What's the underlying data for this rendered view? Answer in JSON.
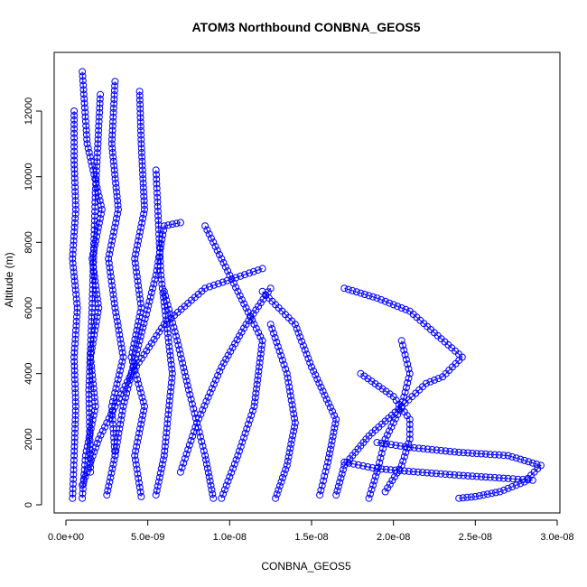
{
  "colors": {
    "series": "#0000ff",
    "axis": "#000000"
  },
  "chart_data": {
    "type": "scatter",
    "title": "ATOM3 Northbound CONBNA_GEOS5",
    "xlabel": "CONBNA_GEOS5",
    "ylabel": "Altitude (m)",
    "xlim": [
      -1e-09,
      3e-08
    ],
    "ylim": [
      -500,
      13300
    ],
    "xticks": [
      0,
      5e-09,
      1e-08,
      1.5e-08,
      2e-08,
      2.5e-08,
      3e-08
    ],
    "xtick_labels": [
      "0.0e+00",
      "5.0e-09",
      "1.0e-08",
      "1.5e-08",
      "2.0e-08",
      "2.5e-08",
      "3.0e-08"
    ],
    "yticks": [
      0,
      2000,
      4000,
      6000,
      8000,
      10000,
      12000
    ],
    "ytick_labels": [
      "0",
      "2000",
      "4000",
      "6000",
      "8000",
      "10000",
      "12000"
    ],
    "marker": "open-circle-with-connecting-line",
    "grid": false,
    "legend": "none",
    "series": [
      {
        "x": [
          4e-10,
          5e-10,
          6e-10,
          5e-10,
          7e-10,
          4e-10,
          6e-10,
          5e-10,
          5e-10
        ],
        "y": [
          200,
          1500,
          3000,
          4500,
          6000,
          7500,
          9000,
          10500,
          12000
        ]
      },
      {
        "x": [
          1e-09,
          1.2e-09,
          1.8e-09,
          1.5e-09,
          2e-09,
          1.6e-09,
          2.2e-09,
          1.3e-09,
          1e-09
        ],
        "y": [
          200,
          1500,
          3000,
          4500,
          6000,
          7500,
          9000,
          11000,
          13200
        ]
      },
      {
        "x": [
          2.5e-09,
          3e-09,
          2.8e-09,
          3.5e-09,
          3e-09,
          2.6e-09,
          3.2e-09,
          2.8e-09,
          3e-09
        ],
        "y": [
          300,
          1500,
          3000,
          4500,
          6000,
          7500,
          9000,
          11000,
          12900
        ]
      },
      {
        "x": [
          4.6e-09,
          4.2e-09,
          4.8e-09,
          4e-09,
          4.6e-09,
          4.2e-09,
          4.8e-09,
          4.6e-09,
          4.5e-09
        ],
        "y": [
          250,
          1500,
          3000,
          4500,
          6000,
          7500,
          9000,
          11000,
          12600
        ]
      },
      {
        "x": [
          1e-09,
          2e-09,
          4e-09,
          6e-09,
          8.5e-09,
          1.2e-08
        ],
        "y": [
          600,
          2000,
          4000,
          5500,
          6600,
          7200
        ]
      },
      {
        "x": [
          5.5e-09,
          6e-09,
          6.5e-09,
          5.8e-09,
          5.5e-09
        ],
        "y": [
          300,
          1500,
          4000,
          7000,
          10200
        ]
      },
      {
        "x": [
          7e-09,
          8e-09,
          9.5e-09,
          1.1e-08,
          1.25e-08
        ],
        "y": [
          1000,
          2500,
          4200,
          5500,
          6600
        ]
      },
      {
        "x": [
          9.5e-09,
          1.05e-08,
          1.15e-08,
          1.2e-08,
          1e-08,
          8.5e-09
        ],
        "y": [
          200,
          1500,
          3000,
          5000,
          7000,
          8500
        ]
      },
      {
        "x": [
          1.28e-08,
          1.35e-08,
          1.4e-08,
          1.35e-08,
          1.25e-08
        ],
        "y": [
          200,
          1200,
          2500,
          4000,
          5500
        ]
      },
      {
        "x": [
          1.55e-08,
          1.6e-08,
          1.65e-08,
          1.5e-08,
          1.4e-08,
          1.2e-08
        ],
        "y": [
          300,
          1300,
          2600,
          4200,
          5500,
          6500
        ]
      },
      {
        "x": [
          1.65e-08,
          1.7e-08,
          1.85e-08,
          2.05e-08,
          2.2e-08,
          2.3e-08,
          2.42e-08,
          2.1e-08,
          1.9e-08,
          1.7e-08
        ],
        "y": [
          300,
          1200,
          2100,
          3000,
          3700,
          3900,
          4500,
          5900,
          6300,
          6600
        ]
      },
      {
        "x": [
          1.85e-08,
          1.9e-08,
          1.95e-08,
          2.05e-08,
          2.1e-08,
          2.05e-08
        ],
        "y": [
          200,
          1000,
          2000,
          3000,
          4000,
          5000
        ]
      },
      {
        "x": [
          1.95e-08,
          2.05e-08,
          2.1e-08,
          2.1e-08,
          2e-08,
          1.8e-08
        ],
        "y": [
          400,
          1200,
          2000,
          2600,
          3300,
          4000
        ]
      },
      {
        "x": [
          2.4e-08,
          2.5e-08,
          2.65e-08,
          2.8e-08,
          2.9e-08,
          2.7e-08,
          2.4e-08,
          2.1e-08,
          1.9e-08
        ],
        "y": [
          200,
          250,
          400,
          700,
          1200,
          1500,
          1600,
          1750,
          1900
        ]
      },
      {
        "x": [
          1.7e-08,
          1.9e-08,
          2.15e-08,
          2.4e-08,
          2.7e-08,
          2.85e-08
        ],
        "y": [
          1300,
          1100,
          1000,
          900,
          800,
          750
        ]
      },
      {
        "x": [
          3e-09,
          3.5e-09,
          4.5e-09,
          5.5e-09,
          6e-09,
          7e-09
        ],
        "y": [
          1500,
          3000,
          5000,
          7000,
          8500,
          8600
        ]
      },
      {
        "x": [
          1.5e-09,
          1.4e-09,
          1.6e-09,
          1.8e-09,
          2.1e-09
        ],
        "y": [
          1000,
          3500,
          6000,
          9500,
          12500
        ]
      },
      {
        "x": [
          9e-09,
          8.5e-09,
          8e-09,
          7.5e-09,
          6.8e-09,
          6e-09
        ],
        "y": [
          200,
          1500,
          2500,
          3500,
          5000,
          6500
        ]
      }
    ]
  }
}
